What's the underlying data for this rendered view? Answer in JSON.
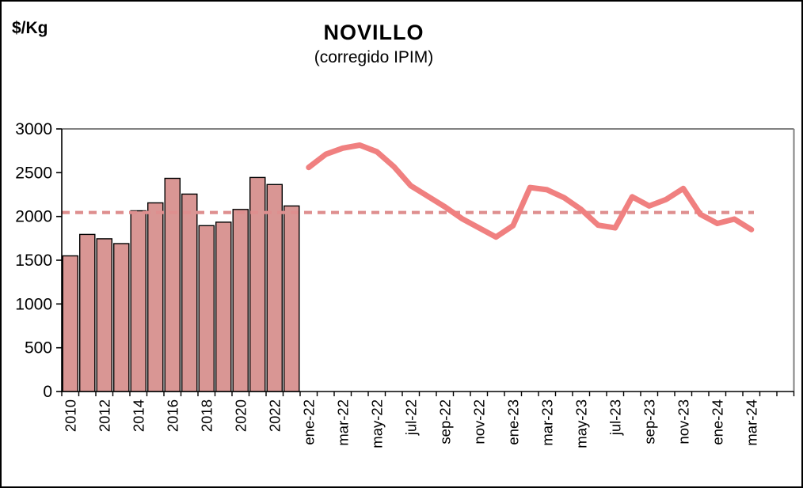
{
  "header": {
    "unit_label": "$/Kg",
    "title": "NOVILLO",
    "subtitle": "(corregido IPIM)"
  },
  "chart_data": {
    "type": "bar",
    "title": "NOVILLO",
    "subtitle": "(corregido IPIM)",
    "ylabel": "$/Kg",
    "xlabel": "",
    "ylim": [
      0,
      3000
    ],
    "y_ticks": [
      0,
      500,
      1000,
      1500,
      2000,
      2500,
      3000
    ],
    "grid": false,
    "legend": "none",
    "colors": {
      "bar_fill": "#D99694",
      "bar_border": "#000000",
      "line": "#F08080",
      "dashed_reference": "#DE8F8F",
      "plot_border": "#808080",
      "axis": "#000000"
    },
    "series": [
      {
        "name": "annual-average-bars",
        "type": "bar",
        "categories": [
          "2010",
          "2011",
          "2012",
          "2013",
          "2014",
          "2015",
          "2016",
          "2017",
          "2018",
          "2019",
          "2020",
          "2021",
          "2022",
          "2023"
        ],
        "values": [
          1550,
          1795,
          1745,
          1690,
          2065,
          2155,
          2435,
          2255,
          1895,
          1935,
          2080,
          2445,
          2365,
          2120
        ]
      },
      {
        "name": "monthly-price-line",
        "type": "line",
        "categories": [
          "ene-22",
          "feb-22",
          "mar-22",
          "abr-22",
          "may-22",
          "jun-22",
          "jul-22",
          "ago-22",
          "sep-22",
          "oct-22",
          "nov-22",
          "dic-22",
          "ene-23",
          "feb-23",
          "mar-23",
          "abr-23",
          "may-23",
          "jun-23",
          "jul-23",
          "ago-23",
          "sep-23",
          "oct-23",
          "nov-23",
          "dic-23",
          "ene-24",
          "feb-24",
          "mar-24"
        ],
        "values": [
          2560,
          2710,
          2780,
          2815,
          2740,
          2570,
          2350,
          2230,
          2110,
          1975,
          1870,
          1765,
          1895,
          2330,
          2305,
          2215,
          2080,
          1900,
          1870,
          2225,
          2120,
          2195,
          2320,
          2025,
          1920,
          1970,
          1850
        ]
      },
      {
        "name": "reference-average-dashed-line",
        "type": "dashed-horizontal-line",
        "value": 2045
      }
    ],
    "x_tick_labels_shown": [
      "2010",
      "2012",
      "2014",
      "2016",
      "2018",
      "2020",
      "2022",
      "ene-22",
      "mar-22",
      "may-22",
      "jul-22",
      "sep-22",
      "nov-22",
      "ene-23",
      "mar-23",
      "may-23",
      "jul-23",
      "sep-23",
      "nov-23",
      "ene-24",
      "mar-24"
    ],
    "x_label_rotation_deg": -90,
    "empty_trailing_slots": 2
  }
}
